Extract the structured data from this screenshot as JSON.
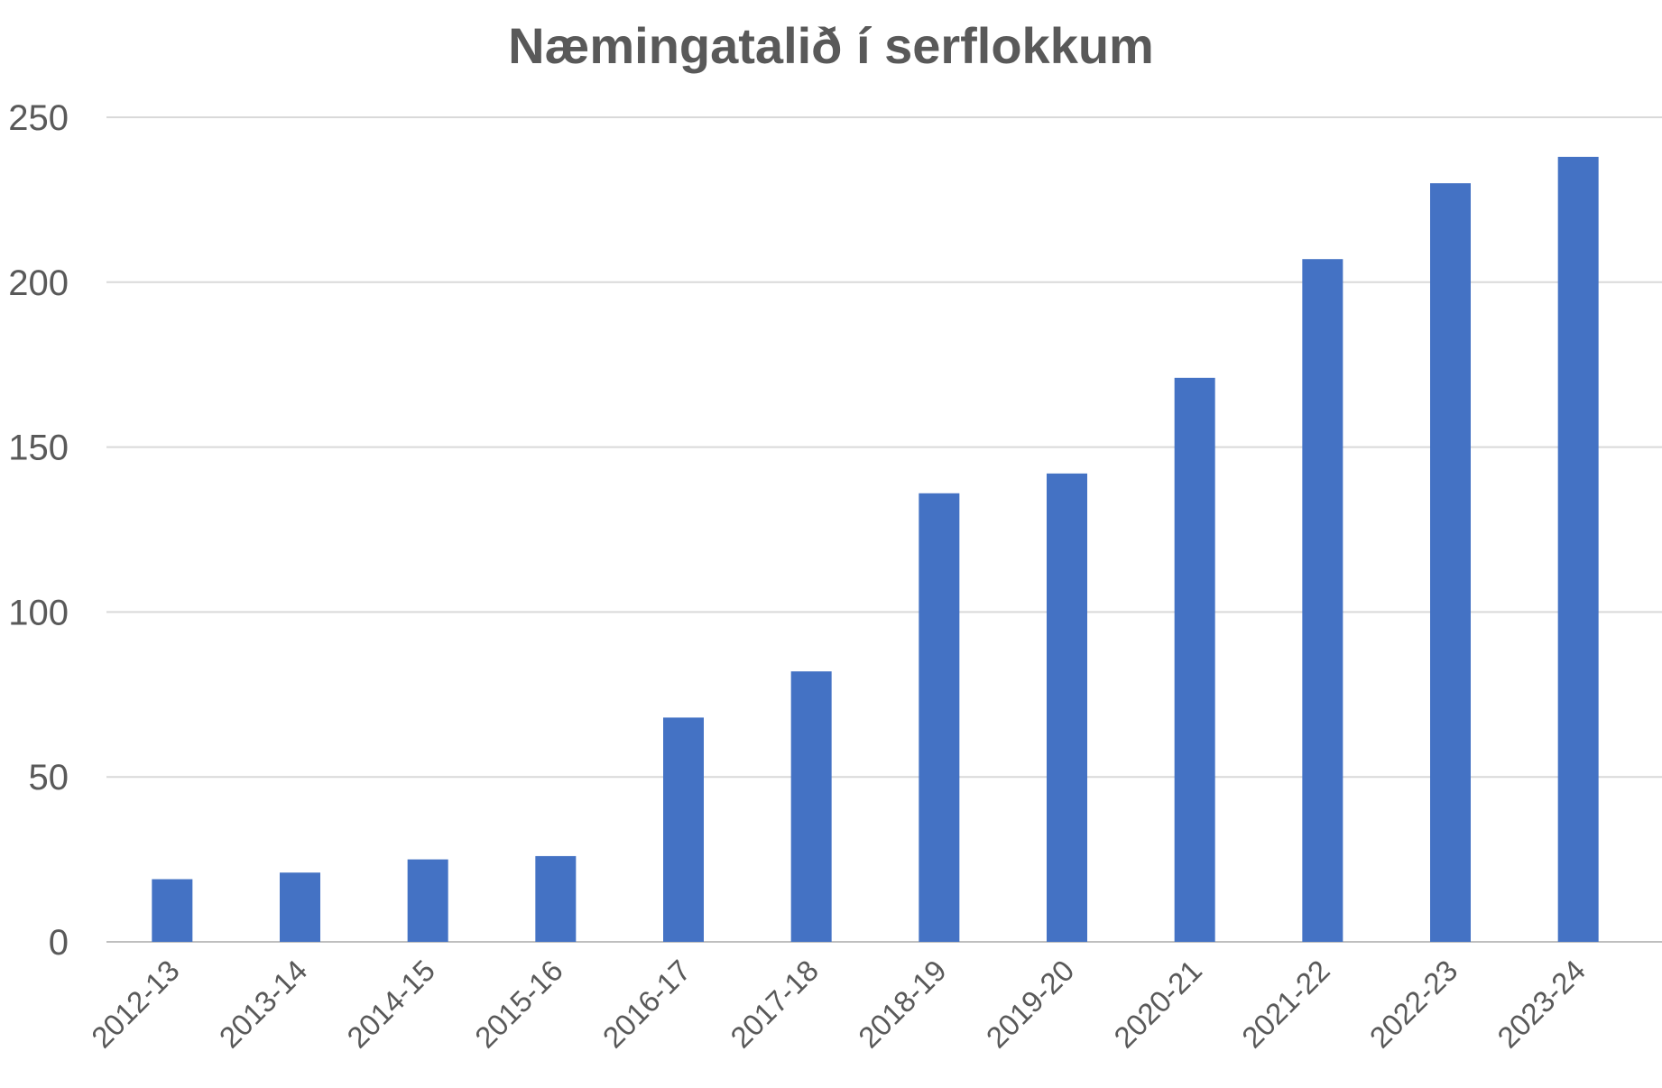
{
  "chart_data": {
    "type": "bar",
    "title": "Næmingatalið í serflokkum",
    "xlabel": "",
    "ylabel": "",
    "categories": [
      "2012-13",
      "2013-14",
      "2014-15",
      "2015-16",
      "2016-17",
      "2017-18",
      "2018-19",
      "2019-20",
      "2020-21",
      "2021-22",
      "2022-23",
      "2023-24"
    ],
    "values": [
      19,
      21,
      25,
      26,
      68,
      82,
      136,
      142,
      171,
      207,
      230,
      238
    ],
    "ylim": [
      0,
      250
    ],
    "yticks": [
      0,
      50,
      100,
      150,
      200,
      250
    ],
    "grid": true,
    "legend": "none",
    "bar_color": "#4472c4"
  }
}
